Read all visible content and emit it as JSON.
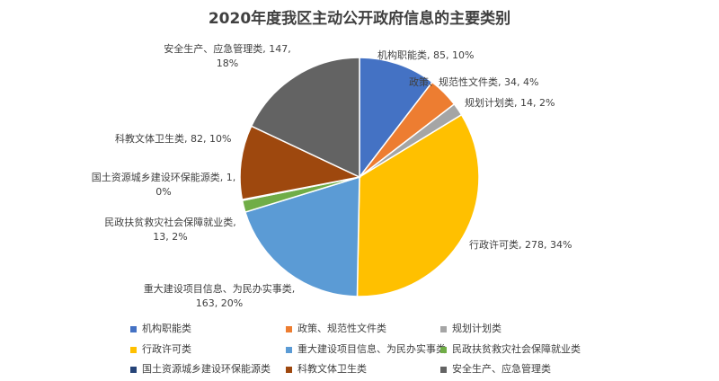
{
  "chart_data": {
    "type": "pie",
    "title": "2020年度我区主动公开政府信息的主要类别",
    "categories": [
      "机构职能类",
      "政策、规范性文件类",
      "规划计划类",
      "行政许可类",
      "重大建设项目信息、为民办实事类",
      "民政扶贫救灾社会保障就业类",
      "国土资源城乡建设环保能源类",
      "科教文体卫生类",
      "安全生产、应急管理类"
    ],
    "values": [
      85,
      34,
      14,
      278,
      163,
      13,
      1,
      82,
      147
    ],
    "value_labels": [
      "机构职能类, 85, 10%",
      "政策、规范性文件类, 34, 4%",
      "规划计划类, 14, 2%",
      "行政许可类, 278, 34%",
      "重大建设项目信息、为民办实事类, 163, 20%",
      "民政扶贫救灾社会保障就业类, 13, 2%",
      "国土资源城乡建设环保能源类, 1, 0%",
      "科教文体卫生类, 82, 10%",
      "安全生产、应急管理类, 147, 18%"
    ],
    "colors": [
      "#4472c4",
      "#ed7d31",
      "#a5a5a5",
      "#ffc000",
      "#5b9bd5",
      "#70ad47",
      "#264478",
      "#9e480e",
      "#636363"
    ],
    "legend": "bottom"
  }
}
